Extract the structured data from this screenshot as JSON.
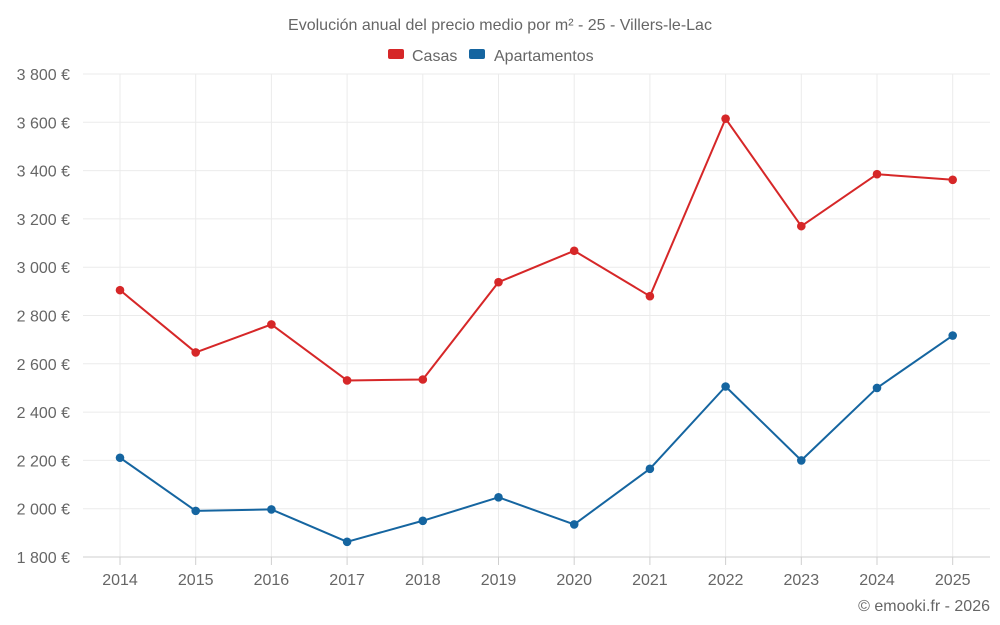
{
  "chart_data": {
    "type": "line",
    "title": "Evolución anual del precio medio por m² - 25 - Villers-le-Lac",
    "categories": [
      "2014",
      "2015",
      "2016",
      "2017",
      "2018",
      "2019",
      "2020",
      "2021",
      "2022",
      "2023",
      "2024",
      "2025"
    ],
    "series": [
      {
        "name": "Casas",
        "color": "#d62728",
        "values": [
          2905,
          2647,
          2763,
          2531,
          2535,
          2938,
          3068,
          2880,
          3615,
          3170,
          3385,
          3362
        ]
      },
      {
        "name": "Apartamentos",
        "color": "#1565a0",
        "values": [
          2211,
          1991,
          1997,
          1863,
          1950,
          2047,
          1935,
          2165,
          2506,
          2200,
          2500,
          2717
        ]
      }
    ],
    "y_ticks": [
      1800,
      2000,
      2200,
      2400,
      2600,
      2800,
      3000,
      3200,
      3400,
      3600,
      3800
    ],
    "y_tick_labels": [
      "1 800 €",
      "2 000 €",
      "2 200 €",
      "2 400 €",
      "2 600 €",
      "2 800 €",
      "3 000 €",
      "3 200 €",
      "3 400 €",
      "3 600 €",
      "3 800 €"
    ],
    "ylim": [
      1800,
      3800
    ],
    "xlabel": "",
    "ylabel": "",
    "grid": true,
    "legend_position": "top-center"
  },
  "credit": "© emooki.fr - 2026"
}
